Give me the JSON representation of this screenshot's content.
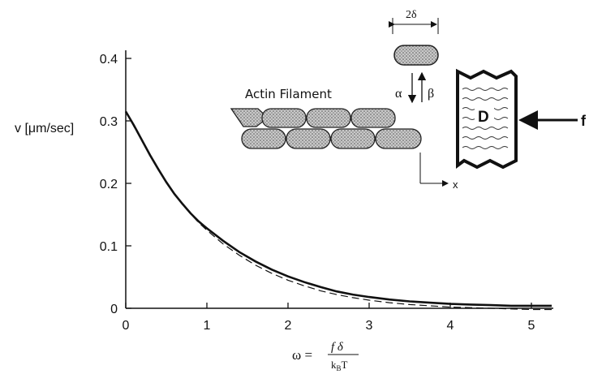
{
  "chart_data": {
    "type": "line",
    "x": [
      0,
      0.1,
      0.2,
      0.3,
      0.4,
      0.5,
      0.6,
      0.7,
      0.8,
      0.9,
      1.0,
      1.2,
      1.4,
      1.6,
      1.8,
      2.0,
      2.2,
      2.4,
      2.6,
      2.8,
      3.0,
      3.25,
      3.5,
      3.75,
      4.0,
      4.25,
      4.5,
      4.75,
      5.0,
      5.25
    ],
    "series": [
      {
        "style": "solid",
        "values": [
          0.315,
          0.293,
          0.269,
          0.245,
          0.223,
          0.202,
          0.183,
          0.167,
          0.152,
          0.139,
          0.128,
          0.108,
          0.09,
          0.075,
          0.062,
          0.051,
          0.042,
          0.034,
          0.027,
          0.022,
          0.018,
          0.014,
          0.011,
          0.009,
          0.007,
          0.006,
          0.005,
          0.004,
          0.004,
          0.004
        ]
      },
      {
        "style": "dashed",
        "values": [
          0.315,
          0.291,
          0.268,
          0.245,
          0.223,
          0.202,
          0.183,
          0.166,
          0.151,
          0.137,
          0.125,
          0.103,
          0.085,
          0.069,
          0.056,
          0.045,
          0.036,
          0.028,
          0.022,
          0.017,
          0.013,
          0.009,
          0.006,
          0.004,
          0.002,
          0.001,
          0.0,
          -0.001,
          -0.002,
          -0.002
        ]
      }
    ],
    "xlim": [
      0,
      5.5
    ],
    "ylim": [
      0,
      0.4
    ],
    "xticks": [
      "0",
      "1",
      "2",
      "3",
      "4",
      "5"
    ],
    "yticks": [
      "0",
      "0.1",
      "0.2",
      "0.3",
      "0.4"
    ],
    "xlabel": {
      "prefix": "ω =",
      "numerator": "f δ",
      "denominator": "kBT",
      "denominator_main": "k",
      "denominator_sub": "B",
      "denominator_end": "T"
    },
    "ylabel": "v [μm/sec]",
    "grid": false
  },
  "inset": {
    "filament_label": "Actin Filament",
    "width_label": "2δ",
    "alpha": "α",
    "beta": "β",
    "wall_label": "D",
    "force_label": "f",
    "x_axis_label": "x"
  }
}
